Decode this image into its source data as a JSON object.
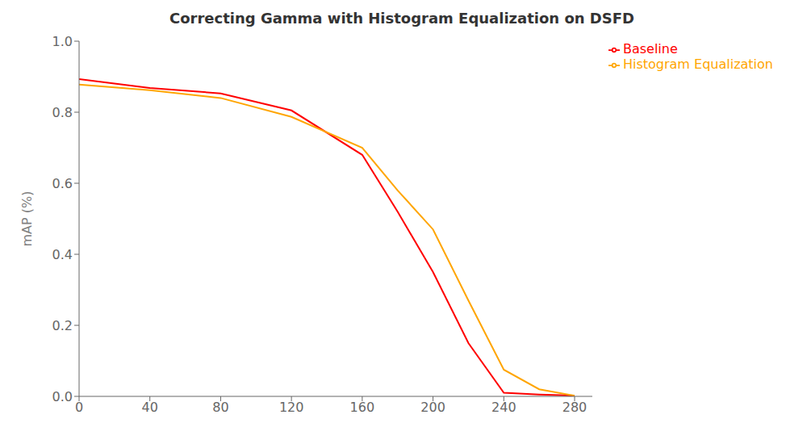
{
  "chart_data": {
    "type": "line",
    "title": "Correcting Gamma with Histogram Equalization on DSFD",
    "ylabel": "mAP (%)",
    "x": [
      0,
      40,
      80,
      120,
      160,
      180,
      200,
      220,
      240,
      260,
      280
    ],
    "series": [
      {
        "name": "Baseline",
        "color": "#ff0000",
        "values": [
          0.893,
          0.868,
          0.853,
          0.805,
          0.68,
          0.52,
          0.35,
          0.15,
          0.01,
          0.005,
          0.002
        ]
      },
      {
        "name": "Histogram Equalization",
        "color": "#FFA500",
        "values": [
          0.878,
          0.862,
          0.84,
          0.787,
          0.7,
          0.58,
          0.47,
          0.27,
          0.075,
          0.02,
          0.002
        ]
      }
    ],
    "xlim": [
      0,
      290
    ],
    "ylim": [
      0.0,
      1.0
    ],
    "xticks": [
      0,
      40,
      80,
      120,
      160,
      200,
      240,
      280
    ],
    "yticks": [
      {
        "value": 0.0,
        "label": "0.0"
      },
      0.2,
      0.4,
      0.6,
      0.8,
      {
        "value": 1.0,
        "label": "1.0"
      }
    ],
    "grid": false,
    "legend": "right"
  }
}
